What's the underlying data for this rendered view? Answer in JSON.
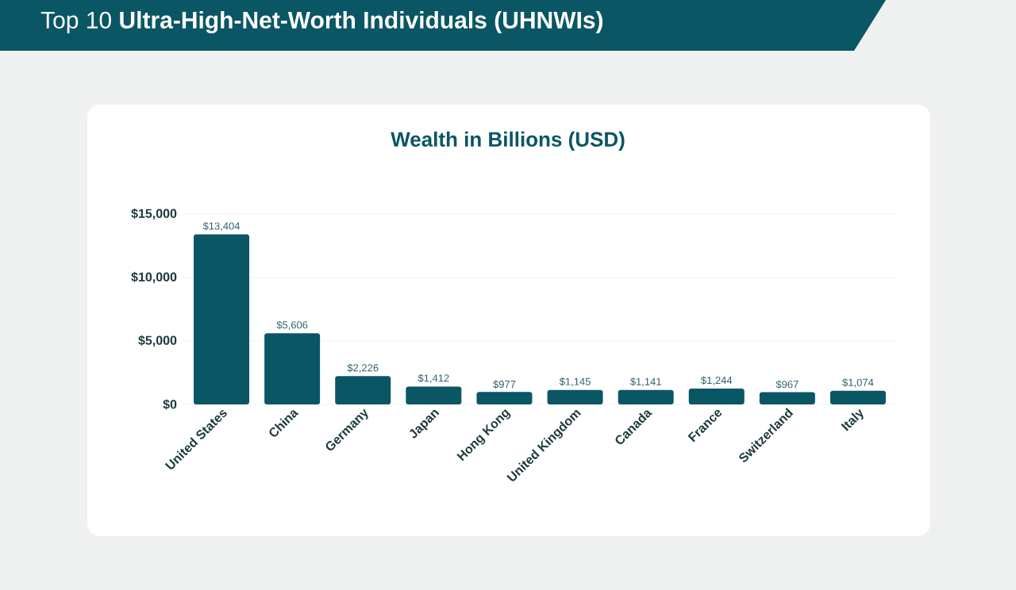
{
  "chart_data": {
    "type": "bar",
    "title": "Top 10 **Ultra-High-Net-Worth Individuals (UHNWIs)**",
    "subtitle": "Wealth in Billions (USD)",
    "categories": [
      "United States",
      "China",
      "Germany",
      "Japan",
      "Hong Kong",
      "United Kingdom",
      "Canada",
      "France",
      "Switzerland",
      "Italy"
    ],
    "values": [
      13404,
      5606,
      2226,
      1412,
      977,
      1145,
      1141,
      1244,
      967,
      1074
    ],
    "value_labels": [
      "$13,404",
      "$5,606",
      "$2,226",
      "$1,412",
      "$977",
      "$1,145",
      "$1,141",
      "$1,244",
      "$967",
      "$1,074"
    ],
    "color": "#0b5664",
    "ylim": [
      0,
      15000
    ],
    "yticks": [
      {
        "value": 0,
        "label": "$0"
      },
      {
        "value": 5000,
        "label": "$5,000"
      },
      {
        "value": 10000,
        "label": "$10,000"
      },
      {
        "value": 15000,
        "label": "$15,000"
      }
    ],
    "grid": "y"
  }
}
